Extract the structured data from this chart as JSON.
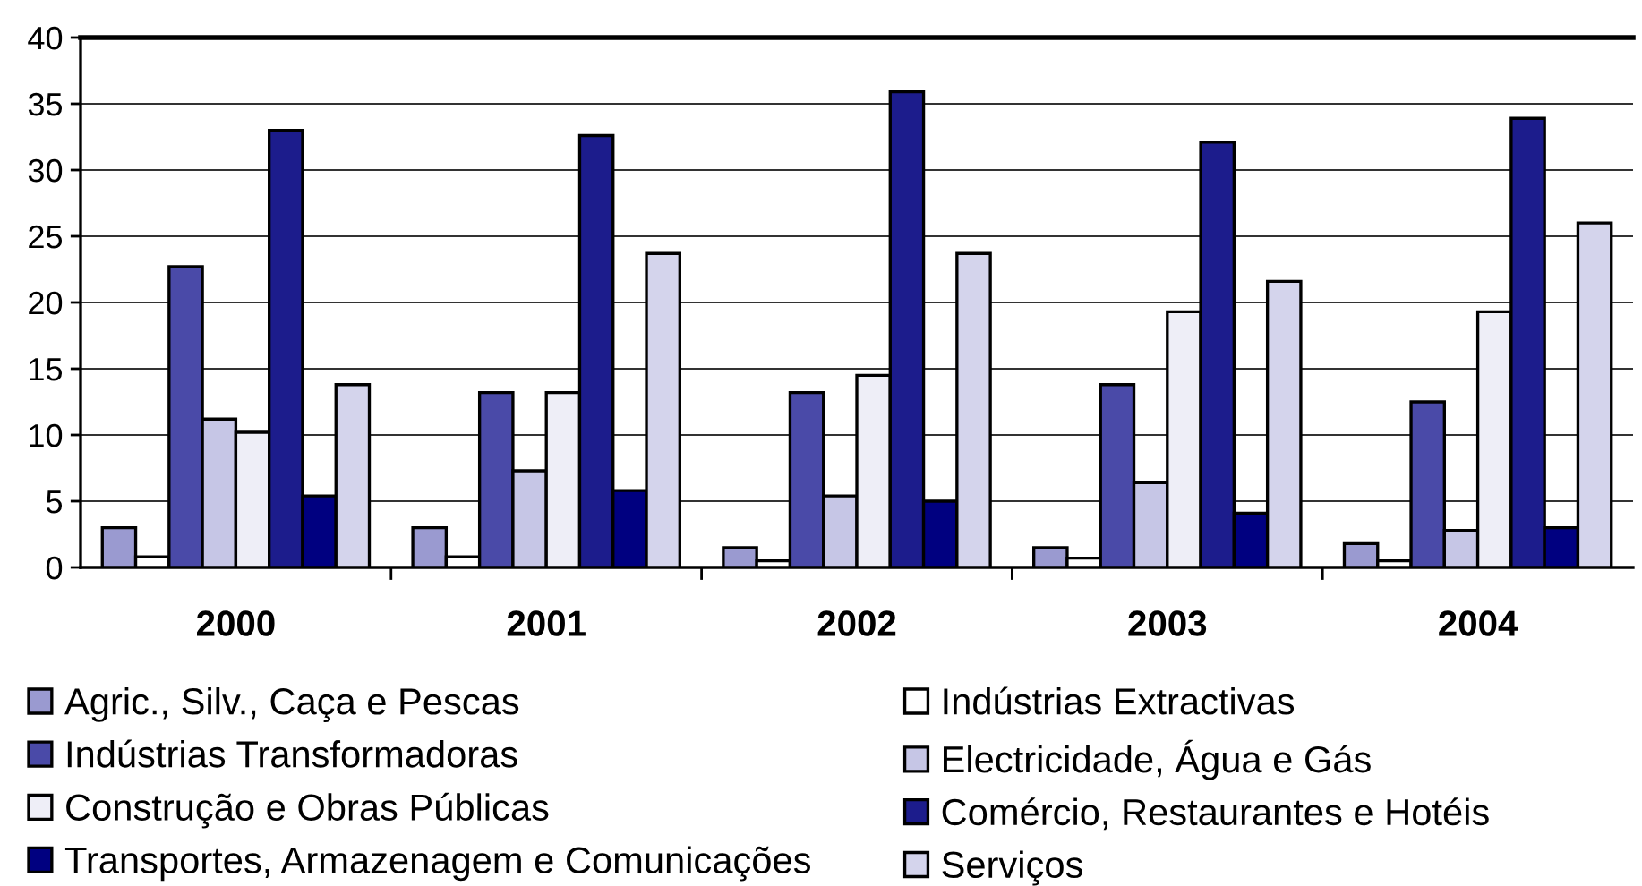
{
  "chart_data": {
    "type": "bar",
    "categories": [
      "2000",
      "2001",
      "2002",
      "2003",
      "2004"
    ],
    "series": [
      {
        "name": "Agric., Silv., Caça e Pescas",
        "color": "#9a9ad0",
        "values": [
          3.0,
          3.0,
          1.5,
          1.5,
          1.8
        ]
      },
      {
        "name": "Indústrias Extractivas",
        "color": "#ffffff",
        "values": [
          0.8,
          0.8,
          0.5,
          0.7,
          0.5
        ]
      },
      {
        "name": "Indústrias Transformadoras",
        "color": "#4a4aa8",
        "values": [
          22.7,
          13.2,
          13.2,
          13.8,
          12.5
        ]
      },
      {
        "name": "Electricidade, Água e Gás",
        "color": "#c6c6e6",
        "values": [
          11.2,
          7.3,
          5.4,
          6.4,
          2.8
        ]
      },
      {
        "name": "Construção e Obras Públicas",
        "color": "#eeeef7",
        "values": [
          10.2,
          13.2,
          14.5,
          19.3,
          19.3
        ]
      },
      {
        "name": "Comércio, Restaurantes e Hotéis",
        "color": "#1c1c8c",
        "values": [
          33.0,
          32.6,
          35.9,
          32.1,
          33.9
        ]
      },
      {
        "name": "Transportes, Armazenagem e Comunicações",
        "color": "#000080",
        "values": [
          5.4,
          5.8,
          5.0,
          4.1,
          3.0
        ]
      },
      {
        "name": "Serviços",
        "color": "#d4d4ec",
        "values": [
          13.8,
          23.7,
          23.7,
          21.6,
          26.0
        ]
      }
    ],
    "ylim": [
      0,
      40
    ],
    "yticks": [
      0,
      5,
      10,
      15,
      20,
      25,
      30,
      35,
      40
    ],
    "grid": "y",
    "legend": "bottom"
  }
}
